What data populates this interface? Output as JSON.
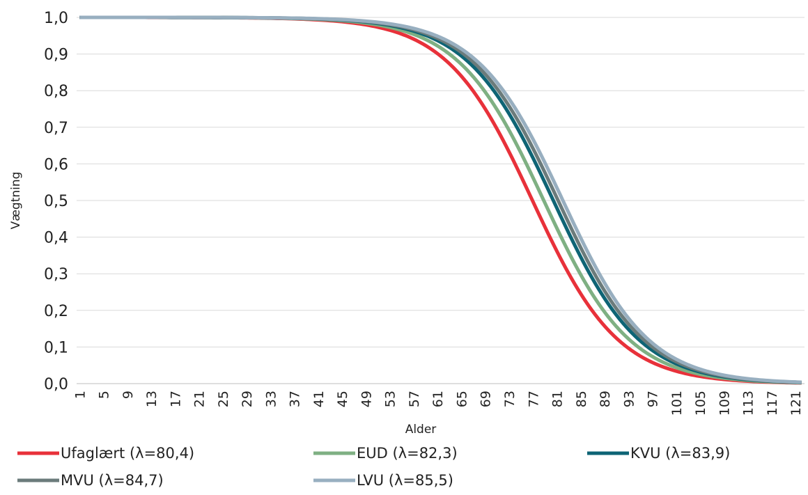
{
  "chart_data": {
    "type": "line",
    "title": "",
    "xlabel": "Alder",
    "ylabel": "Vægtning",
    "x_range": [
      1,
      122
    ],
    "x_tick_values": [
      1,
      5,
      9,
      13,
      17,
      21,
      25,
      29,
      33,
      37,
      41,
      45,
      49,
      53,
      57,
      61,
      65,
      69,
      73,
      77,
      81,
      85,
      89,
      93,
      97,
      101,
      105,
      109,
      113,
      117,
      121
    ],
    "ylim": [
      0,
      1
    ],
    "y_ticks": [
      "0,0",
      "0,1",
      "0,2",
      "0,3",
      "0,4",
      "0,5",
      "0,6",
      "0,7",
      "0,8",
      "0,9",
      "1,0"
    ],
    "grid": "horizontal",
    "legend_position": "bottom",
    "series": [
      {
        "name": "Ufaglært (λ=80,4)",
        "color": "#e8313a",
        "lambda": 80.4
      },
      {
        "name": "EUD (λ=82,3)",
        "color": "#7fb083",
        "lambda": 82.3
      },
      {
        "name": "KVU (λ=83,9)",
        "color": "#0e6475",
        "lambda": 83.9
      },
      {
        "name": "MVU (λ=84,7)",
        "color": "#6b7b7b",
        "lambda": 84.7
      },
      {
        "name": "LVU (λ=85,5)",
        "color": "#98afc0",
        "lambda": 85.5
      }
    ],
    "x": [
      1,
      5,
      9,
      13,
      17,
      21,
      25,
      29,
      33,
      37,
      41,
      45,
      49,
      53,
      57,
      61,
      65,
      69,
      73,
      77,
      81,
      85,
      89,
      93,
      97,
      101,
      105,
      109,
      113,
      117,
      121
    ],
    "values": {
      "Ufaglært (λ=80,4)": [
        1,
        1,
        1,
        1,
        1,
        1,
        1,
        1,
        1,
        0.998,
        0.995,
        0.99,
        0.98,
        0.96,
        0.93,
        0.88,
        0.8,
        0.7,
        0.6,
        0.49,
        0.37,
        0.25,
        0.15,
        0.07,
        0.025,
        0.007,
        0.002,
        0,
        0,
        0,
        0
      ]
    }
  }
}
